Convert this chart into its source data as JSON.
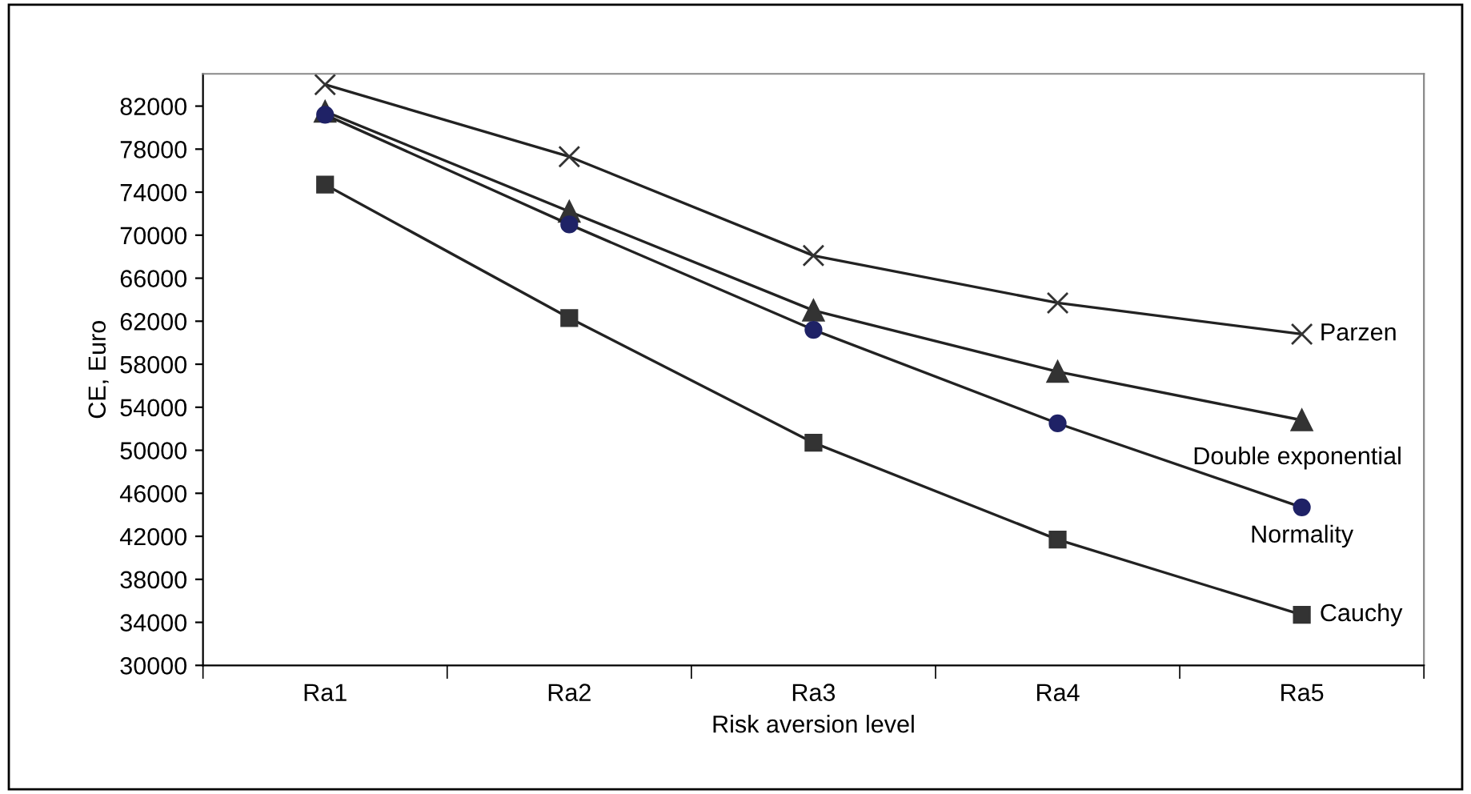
{
  "chart_data": {
    "type": "line",
    "xlabel": "Risk aversion level",
    "ylabel": "CE, Euro",
    "categories": [
      "Ra1",
      "Ra2",
      "Ra3",
      "Ra4",
      "Ra5"
    ],
    "ylim": [
      30000,
      85000
    ],
    "yticks": [
      30000,
      34000,
      38000,
      42000,
      46000,
      50000,
      54000,
      58000,
      62000,
      66000,
      70000,
      74000,
      78000,
      82000
    ],
    "grid": false,
    "legend": false,
    "series": [
      {
        "name": "Parzen",
        "color": "#333333",
        "marker": "cross",
        "values": [
          84000,
          77300,
          68100,
          63700,
          60800
        ]
      },
      {
        "name": "Double exponential",
        "color": "#333333",
        "marker": "triangle",
        "values": [
          81500,
          72200,
          63000,
          57300,
          52800
        ]
      },
      {
        "name": "Normality",
        "color": "#1f2266",
        "marker": "circle",
        "values": [
          81200,
          71000,
          61200,
          52500,
          44700
        ]
      },
      {
        "name": "Cauchy",
        "color": "#333333",
        "marker": "square",
        "values": [
          74700,
          62300,
          50700,
          41700,
          34700
        ]
      }
    ]
  }
}
